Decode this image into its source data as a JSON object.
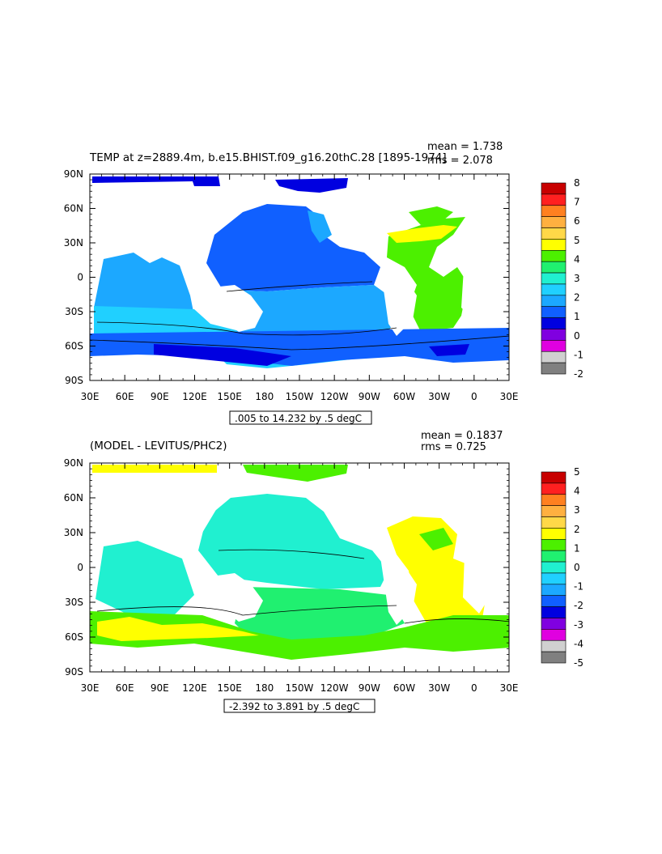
{
  "panels": [
    {
      "title": "TEMP at z=2889.4m, b.e15.BHIST.f09_g16.20thC.28 [1895-1974]",
      "mean_text": "mean = 1.738",
      "rms_text": "rms = 2.078",
      "range_text": ".005 to 14.232 by .5 degC",
      "colorbar_labels": [
        "8",
        "7",
        "6",
        "5",
        "4",
        "3",
        "2",
        "1",
        "0",
        "-1",
        "-2"
      ],
      "colorbar_colors": [
        "#c80000",
        "#ff2020",
        "#ff8020",
        "#ffb040",
        "#ffd848",
        "#ffff00",
        "#4cf000",
        "#20f070",
        "#20f0d0",
        "#20d0ff",
        "#1ca8ff",
        "#1060ff",
        "#0000e0",
        "#8000e0",
        "#e000e0",
        "#d0d0d0",
        "#808080"
      ]
    },
    {
      "title": "(MODEL - LEVITUS/PHC2)",
      "mean_text": "mean = 0.1837",
      "rms_text": "rms = 0.725",
      "range_text": "-2.392 to 3.891 by .5 degC",
      "colorbar_labels": [
        "5",
        "4",
        "3",
        "2",
        "1",
        "0",
        "-1",
        "-2",
        "-3",
        "-4",
        "-5"
      ],
      "colorbar_colors": [
        "#c80000",
        "#ff2020",
        "#ff8020",
        "#ffb040",
        "#ffd848",
        "#ffff00",
        "#4cf000",
        "#20f070",
        "#20f0d0",
        "#20d0ff",
        "#1ca8ff",
        "#1060ff",
        "#0000e0",
        "#8000e0",
        "#e000e0",
        "#d0d0d0",
        "#808080"
      ]
    }
  ],
  "axes": {
    "lat_labels": [
      "90N",
      "60N",
      "30N",
      "0",
      "30S",
      "60S",
      "90S"
    ],
    "lon_labels": [
      "30E",
      "60E",
      "90E",
      "120E",
      "150E",
      "180",
      "150W",
      "120W",
      "90W",
      "60W",
      "30W",
      "0",
      "30E"
    ]
  },
  "colors": {
    "land": "#ffffff",
    "frame": "#000000"
  }
}
